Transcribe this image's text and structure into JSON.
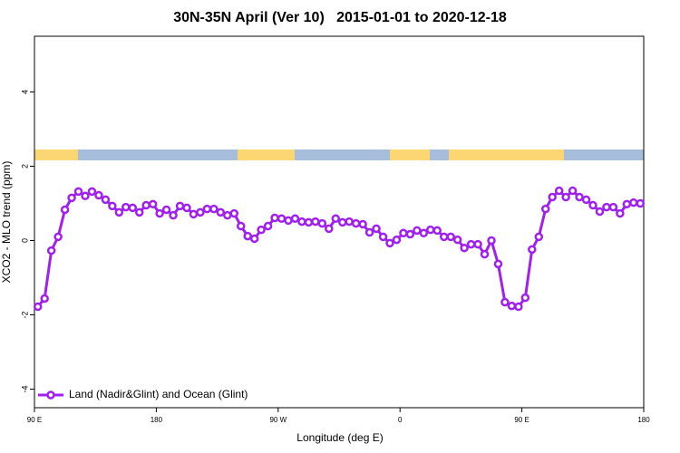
{
  "chart_data": {
    "type": "line",
    "title": "30N-35N April (Ver 10)   2015-01-01 to 2020-12-18",
    "x_label": "Longitude (deg E)",
    "y_label": "XCO2 - MLO trend (ppm)",
    "xlim": [
      90,
      540
    ],
    "xticks": [
      {
        "value": 90,
        "label": "90 E"
      },
      180,
      {
        "value": 270,
        "label": "90 W"
      },
      {
        "value": 360,
        "label": "0"
      },
      {
        "value": 450,
        "label": "90 E"
      },
      {
        "value": 540,
        "label": "180"
      }
    ],
    "ylim": [
      -4.5,
      5.5
    ],
    "yticks": [
      -4,
      -2,
      0,
      2,
      4
    ],
    "legend": "bottom-left",
    "x": [
      92.5,
      97.5,
      102.5,
      107.5,
      112.5,
      117.5,
      122.5,
      127.5,
      132.5,
      137.5,
      142.5,
      147.5,
      152.5,
      157.5,
      162.5,
      167.5,
      172.5,
      177.5,
      182.5,
      187.5,
      192.5,
      197.5,
      202.5,
      207.5,
      212.5,
      217.5,
      222.5,
      227.5,
      232.5,
      237.5,
      242.5,
      247.5,
      252.5,
      257.5,
      262.5,
      267.5,
      272.5,
      277.5,
      282.5,
      287.5,
      292.5,
      297.5,
      302.5,
      307.5,
      312.5,
      317.5,
      322.5,
      327.5,
      332.5,
      337.5,
      342.5,
      347.5,
      352.5,
      357.5,
      362.5,
      367.5,
      372.5,
      377.5,
      382.5,
      387.5,
      392.5,
      397.5,
      402.5,
      407.5,
      412.5,
      417.5,
      422.5,
      427.5,
      432.5,
      437.5,
      442.5,
      447.5,
      452.5,
      457.5,
      462.5,
      467.5,
      472.5,
      477.5,
      482.5,
      487.5,
      492.5,
      497.5,
      502.5,
      507.5,
      512.5,
      517.5,
      522.5,
      527.5,
      532.5,
      537.5
    ],
    "series": [
      {
        "name": "Land (Nadir&Glint) and Ocean (Glint)",
        "color": "#a020f0",
        "values": [
          -1.78,
          -1.56,
          -0.27,
          0.1,
          0.83,
          1.15,
          1.32,
          1.2,
          1.32,
          1.22,
          1.1,
          0.93,
          0.76,
          0.9,
          0.88,
          0.76,
          0.95,
          0.98,
          0.73,
          0.83,
          0.68,
          0.93,
          0.88,
          0.71,
          0.76,
          0.85,
          0.85,
          0.76,
          0.68,
          0.73,
          0.39,
          0.12,
          0.05,
          0.29,
          0.39,
          0.61,
          0.59,
          0.54,
          0.59,
          0.51,
          0.49,
          0.51,
          0.46,
          0.32,
          0.59,
          0.49,
          0.51,
          0.46,
          0.44,
          0.22,
          0.32,
          0.1,
          -0.07,
          0.02,
          0.2,
          0.17,
          0.27,
          0.2,
          0.29,
          0.27,
          0.1,
          0.1,
          0.02,
          -0.2,
          -0.1,
          -0.1,
          -0.37,
          0.0,
          -0.63,
          -1.66,
          -1.76,
          -1.78,
          -1.54,
          -0.24,
          0.1,
          0.85,
          1.17,
          1.34,
          1.17,
          1.34,
          1.17,
          1.1,
          0.95,
          0.78,
          0.9,
          0.9,
          0.73,
          0.98,
          1.02,
          1.0
        ]
      }
    ]
  }
}
